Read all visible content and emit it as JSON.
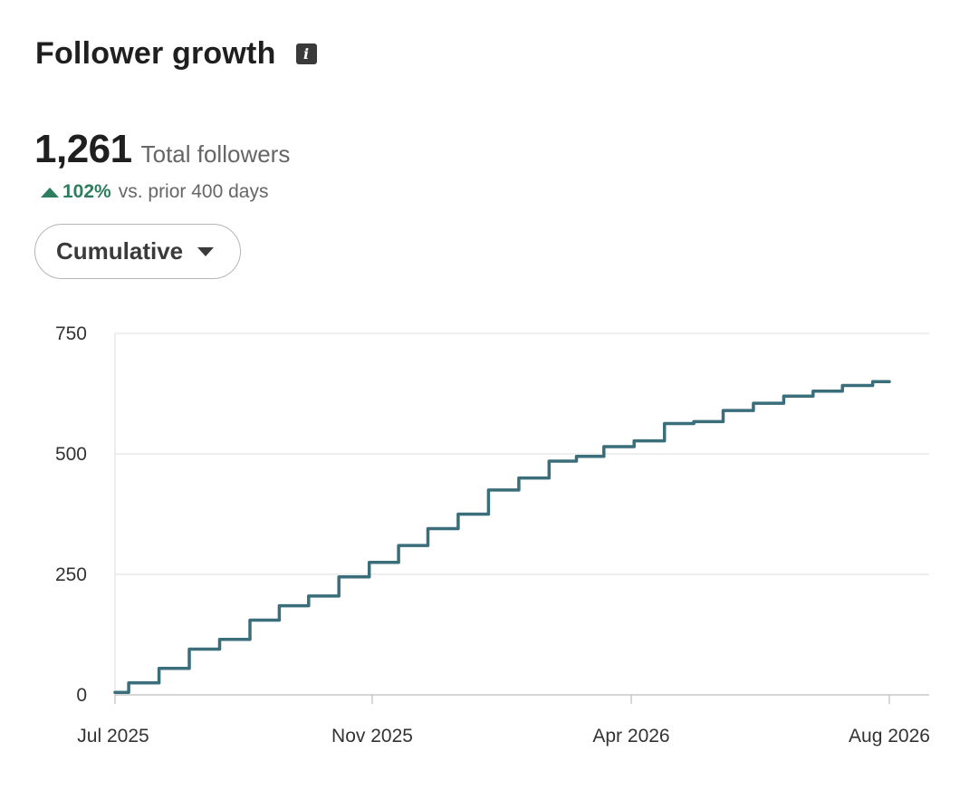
{
  "header": {
    "title": "Follower growth",
    "info_icon": "info-icon"
  },
  "stats": {
    "total": "1,261",
    "total_label": "Total followers",
    "change_value": "102%",
    "change_label": "vs. prior 400 days",
    "change_color": "#2f7d5f"
  },
  "dropdown": {
    "selected": "Cumulative"
  },
  "chart_data": {
    "type": "line",
    "title": "",
    "xlabel": "",
    "ylabel": "",
    "x_ticks": [
      "Jul 2025",
      "Nov 2025",
      "Apr 2026",
      "Aug 2026"
    ],
    "y_ticks": [
      "0",
      "250",
      "500",
      "750"
    ],
    "ylim": [
      0,
      750
    ],
    "xlim": [
      "2025-07-01",
      "2026-08-01"
    ],
    "grid": true,
    "line_color": "#3a6e7a",
    "series": [
      {
        "x": [
          "2025-07-01",
          "2025-07-15",
          "2025-08-01",
          "2025-08-15",
          "2025-09-01",
          "2025-09-15",
          "2025-10-01",
          "2025-10-15",
          "2025-11-01",
          "2025-11-15",
          "2025-12-01",
          "2025-12-15",
          "2026-01-01",
          "2026-01-15",
          "2026-02-01",
          "2026-02-15",
          "2026-03-01",
          "2026-03-15",
          "2026-04-01",
          "2026-04-15",
          "2026-05-01",
          "2026-05-15",
          "2026-06-01",
          "2026-06-15",
          "2026-07-01",
          "2026-07-15",
          "2026-08-01"
        ],
        "values": [
          5,
          25,
          55,
          95,
          115,
          155,
          185,
          205,
          245,
          275,
          310,
          345,
          375,
          425,
          450,
          485,
          495,
          515,
          527,
          563,
          567,
          590,
          605,
          620,
          630,
          642,
          650
        ]
      }
    ]
  }
}
